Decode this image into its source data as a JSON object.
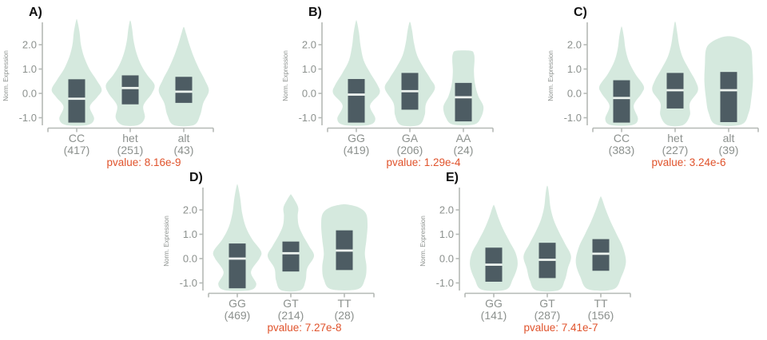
{
  "colors": {
    "violin_fill": "#d5e9de",
    "box_fill": "#4d5c63",
    "median_line": "#edf3ef",
    "axis_line": "#b5b9b6",
    "tick_text": "#8c918e",
    "group_text": "#8c918e",
    "pvalue_text": "#e0532c",
    "panel_letter": "#111111",
    "background": "#ffffff"
  },
  "chart_data": {
    "type": "violin",
    "title": "",
    "ylabel": "Norm. Expression",
    "ylim": [
      -1.4,
      3.1
    ],
    "yticks": [
      "2.0",
      "1.0",
      "0.0",
      "-1.0"
    ],
    "ytick_values": [
      2.0,
      1.0,
      0.0,
      -1.0
    ],
    "grid": false,
    "panels": [
      {
        "label": "A)",
        "pvalue": "pvalue: 8.16e-9",
        "groups": [
          {
            "name": "CC",
            "count": "(417)",
            "box": {
              "q1": -1.2,
              "median": -0.22,
              "q3": 0.58
            },
            "violin": [
              [
                -1.3,
                0.4
              ],
              [
                -1.05,
                0.66
              ],
              [
                -0.55,
                0.5
              ],
              [
                -0.15,
                0.78
              ],
              [
                0.15,
                0.95
              ],
              [
                0.55,
                0.75
              ],
              [
                1.0,
                0.48
              ],
              [
                1.5,
                0.28
              ],
              [
                2.0,
                0.16
              ],
              [
                2.5,
                0.11
              ],
              [
                3.0,
                0.02
              ]
            ]
          },
          {
            "name": "het",
            "count": "(251)",
            "box": {
              "q1": -0.45,
              "median": 0.22,
              "q3": 0.74
            },
            "violin": [
              [
                -1.3,
                0.3
              ],
              [
                -1.0,
                0.55
              ],
              [
                -0.5,
                0.5
              ],
              [
                0.0,
                0.82
              ],
              [
                0.35,
                0.92
              ],
              [
                0.75,
                0.65
              ],
              [
                1.15,
                0.42
              ],
              [
                1.65,
                0.24
              ],
              [
                2.15,
                0.13
              ],
              [
                2.6,
                0.08
              ],
              [
                2.95,
                0.02
              ]
            ]
          },
          {
            "name": "alt",
            "count": "(43)",
            "box": {
              "q1": -0.39,
              "median": 0.07,
              "q3": 0.68
            },
            "violin": [
              [
                -1.3,
                0.38
              ],
              [
                -0.9,
                0.62
              ],
              [
                -0.4,
                0.74
              ],
              [
                0.1,
                0.95
              ],
              [
                0.55,
                0.8
              ],
              [
                1.05,
                0.56
              ],
              [
                1.55,
                0.36
              ],
              [
                2.05,
                0.2
              ],
              [
                2.45,
                0.09
              ],
              [
                2.7,
                0.02
              ]
            ]
          }
        ]
      },
      {
        "label": "B)",
        "pvalue": "pvalue: 1.29e-4",
        "groups": [
          {
            "name": "GG",
            "count": "(419)",
            "box": {
              "q1": -1.2,
              "median": -0.05,
              "q3": 0.59
            },
            "violin": [
              [
                -1.3,
                0.46
              ],
              [
                -1.05,
                0.72
              ],
              [
                -0.5,
                0.52
              ],
              [
                0.0,
                0.88
              ],
              [
                0.35,
                0.8
              ],
              [
                0.85,
                0.52
              ],
              [
                1.35,
                0.28
              ],
              [
                1.95,
                0.16
              ],
              [
                2.5,
                0.1
              ],
              [
                2.95,
                0.02
              ]
            ]
          },
          {
            "name": "GA",
            "count": "(206)",
            "box": {
              "q1": -0.67,
              "median": 0.09,
              "q3": 0.84
            },
            "violin": [
              [
                -1.3,
                0.34
              ],
              [
                -0.9,
                0.56
              ],
              [
                -0.4,
                0.62
              ],
              [
                0.2,
                0.95
              ],
              [
                0.6,
                0.78
              ],
              [
                1.05,
                0.52
              ],
              [
                1.55,
                0.28
              ],
              [
                2.05,
                0.16
              ],
              [
                2.55,
                0.09
              ],
              [
                2.9,
                0.02
              ]
            ]
          },
          {
            "name": "AA",
            "count": "(24)",
            "box": {
              "q1": -1.15,
              "median": -0.16,
              "q3": 0.43
            },
            "violin": [
              [
                -1.28,
                0.4
              ],
              [
                -1.0,
                0.66
              ],
              [
                -0.55,
                0.76
              ],
              [
                -0.1,
                0.56
              ],
              [
                0.4,
                0.44
              ],
              [
                0.9,
                0.4
              ],
              [
                1.35,
                0.42
              ],
              [
                1.62,
                0.4
              ],
              [
                1.75,
                0.28
              ]
            ]
          }
        ]
      },
      {
        "label": "C)",
        "pvalue": "pvalue: 3.24e-6",
        "groups": [
          {
            "name": "CC",
            "count": "(383)",
            "box": {
              "q1": -1.2,
              "median": -0.19,
              "q3": 0.54
            },
            "violin": [
              [
                -1.3,
                0.4
              ],
              [
                -1.05,
                0.62
              ],
              [
                -0.5,
                0.46
              ],
              [
                0.0,
                0.76
              ],
              [
                0.3,
                0.84
              ],
              [
                0.8,
                0.52
              ],
              [
                1.3,
                0.28
              ],
              [
                1.8,
                0.15
              ],
              [
                2.3,
                0.09
              ],
              [
                2.7,
                0.02
              ]
            ]
          },
          {
            "name": "het",
            "count": "(227)",
            "box": {
              "q1": -0.62,
              "median": 0.13,
              "q3": 0.84
            },
            "violin": [
              [
                -1.3,
                0.3
              ],
              [
                -0.9,
                0.56
              ],
              [
                -0.4,
                0.56
              ],
              [
                0.1,
                0.86
              ],
              [
                0.5,
                0.78
              ],
              [
                1.0,
                0.52
              ],
              [
                1.5,
                0.28
              ],
              [
                2.0,
                0.15
              ],
              [
                2.5,
                0.08
              ],
              [
                2.9,
                0.02
              ]
            ]
          },
          {
            "name": "alt",
            "count": "(39)",
            "box": {
              "q1": -1.18,
              "median": 0.13,
              "q3": 0.88
            },
            "violin": [
              [
                -1.28,
                0.48
              ],
              [
                -0.8,
                0.76
              ],
              [
                -0.2,
                0.86
              ],
              [
                0.5,
                0.92
              ],
              [
                1.2,
                0.9
              ],
              [
                1.8,
                0.86
              ],
              [
                2.1,
                0.66
              ],
              [
                2.32,
                0.22
              ]
            ]
          }
        ]
      },
      {
        "label": "D)",
        "pvalue": "pvalue: 7.27e-8",
        "groups": [
          {
            "name": "GG",
            "count": "(469)",
            "box": {
              "q1": -1.22,
              "median": 0.0,
              "q3": 0.62
            },
            "violin": [
              [
                -1.3,
                0.46
              ],
              [
                -1.05,
                0.72
              ],
              [
                -0.55,
                0.52
              ],
              [
                0.0,
                0.84
              ],
              [
                0.3,
                0.9
              ],
              [
                0.8,
                0.56
              ],
              [
                1.3,
                0.32
              ],
              [
                1.9,
                0.18
              ],
              [
                2.5,
                0.11
              ],
              [
                3.0,
                0.02
              ]
            ]
          },
          {
            "name": "GT",
            "count": "(214)",
            "box": {
              "q1": -0.53,
              "median": 0.22,
              "q3": 0.7
            },
            "violin": [
              [
                -1.3,
                0.36
              ],
              [
                -0.9,
                0.56
              ],
              [
                -0.4,
                0.62
              ],
              [
                0.1,
                0.88
              ],
              [
                0.5,
                0.7
              ],
              [
                0.95,
                0.46
              ],
              [
                1.35,
                0.3
              ],
              [
                1.75,
                0.26
              ],
              [
                2.1,
                0.28
              ],
              [
                2.45,
                0.12
              ],
              [
                2.62,
                0.02
              ]
            ]
          },
          {
            "name": "TT",
            "count": "(28)",
            "box": {
              "q1": -0.47,
              "median": 0.33,
              "q3": 1.16
            },
            "violin": [
              [
                -1.26,
                0.5
              ],
              [
                -0.85,
                0.78
              ],
              [
                -0.35,
                0.84
              ],
              [
                0.2,
                0.78
              ],
              [
                0.8,
                0.84
              ],
              [
                1.4,
                0.88
              ],
              [
                1.85,
                0.82
              ],
              [
                2.1,
                0.55
              ],
              [
                2.22,
                0.12
              ]
            ]
          }
        ]
      },
      {
        "label": "E)",
        "pvalue": "pvalue: 7.41e-7",
        "groups": [
          {
            "name": "GG",
            "count": "(141)",
            "box": {
              "q1": -0.95,
              "median": -0.25,
              "q3": 0.45
            },
            "violin": [
              [
                -1.28,
                0.45
              ],
              [
                -0.85,
                0.72
              ],
              [
                -0.3,
                0.9
              ],
              [
                0.2,
                0.84
              ],
              [
                0.7,
                0.6
              ],
              [
                1.2,
                0.36
              ],
              [
                1.7,
                0.17
              ],
              [
                2.15,
                0.03
              ]
            ]
          },
          {
            "name": "GT",
            "count": "(287)",
            "box": {
              "q1": -0.8,
              "median": -0.05,
              "q3": 0.65
            },
            "violin": [
              [
                -1.3,
                0.42
              ],
              [
                -0.9,
                0.66
              ],
              [
                -0.4,
                0.78
              ],
              [
                0.1,
                0.9
              ],
              [
                0.6,
                0.68
              ],
              [
                1.1,
                0.44
              ],
              [
                1.6,
                0.24
              ],
              [
                2.1,
                0.12
              ],
              [
                2.6,
                0.07
              ],
              [
                2.95,
                0.02
              ]
            ]
          },
          {
            "name": "TT",
            "count": "(156)",
            "box": {
              "q1": -0.5,
              "median": 0.2,
              "q3": 0.8
            },
            "violin": [
              [
                -1.26,
                0.48
              ],
              [
                -0.75,
                0.78
              ],
              [
                -0.15,
                0.95
              ],
              [
                0.45,
                0.84
              ],
              [
                1.0,
                0.6
              ],
              [
                1.5,
                0.38
              ],
              [
                2.0,
                0.19
              ],
              [
                2.5,
                0.03
              ]
            ]
          }
        ]
      }
    ]
  }
}
